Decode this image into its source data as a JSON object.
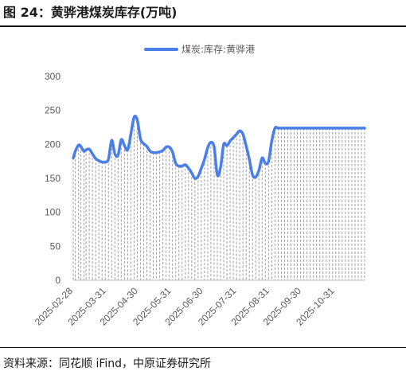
{
  "figure": {
    "title": "图 24：黄骅港煤炭库存(万吨)",
    "source": "资料来源：同花顺 iFind，中原证券研究所"
  },
  "colors": {
    "series": "#4a7ee8",
    "grid_drop": "#9e9e9e",
    "axis": "#bfbfbf",
    "text": "#595959"
  },
  "chart_data": {
    "type": "area",
    "series": [
      {
        "name": "煤炭:库存:黄骅港",
        "x": [
          "2025-02-28",
          "2025-03-02",
          "2025-03-05",
          "2025-03-07",
          "2025-03-10",
          "2025-03-12",
          "2025-03-15",
          "2025-03-18",
          "2025-03-21",
          "2025-03-24",
          "2025-03-27",
          "2025-03-30",
          "2025-04-02",
          "2025-04-05",
          "2025-04-08",
          "2025-04-11",
          "2025-04-14",
          "2025-04-17",
          "2025-04-20",
          "2025-04-23",
          "2025-04-26",
          "2025-04-29",
          "2025-05-02",
          "2025-05-05",
          "2025-05-08",
          "2025-05-11",
          "2025-05-14",
          "2025-05-17",
          "2025-05-20",
          "2025-05-23",
          "2025-05-26",
          "2025-05-29",
          "2025-06-01",
          "2025-06-04",
          "2025-06-07",
          "2025-06-10",
          "2025-06-13",
          "2025-06-16",
          "2025-06-19",
          "2025-06-22",
          "2025-06-25",
          "2025-06-28",
          "2025-07-01",
          "2025-07-04",
          "2025-07-07",
          "2025-07-10",
          "2025-07-13",
          "2025-07-16",
          "2025-07-19",
          "2025-07-22",
          "2025-07-25",
          "2025-07-28",
          "2025-07-31",
          "2025-08-03",
          "2025-08-06",
          "2025-08-09",
          "2025-08-12",
          "2025-08-15",
          "2025-08-18",
          "2025-08-21",
          "2025-08-24",
          "2025-08-27",
          "2025-08-30",
          "2025-09-02",
          "2025-09-05",
          "2025-09-08",
          "2025-09-11",
          "2025-09-14",
          "2025-09-17",
          "2025-09-20",
          "2025-09-23",
          "2025-09-26",
          "2025-09-29",
          "2025-10-02",
          "2025-10-05",
          "2025-10-08",
          "2025-10-11",
          "2025-10-14",
          "2025-10-17",
          "2025-10-20",
          "2025-10-23",
          "2025-10-26",
          "2025-10-29",
          "2025-11-01",
          "2025-11-04",
          "2025-11-07",
          "2025-11-10",
          "2025-11-13",
          "2025-11-16",
          "2025-11-19",
          "2025-11-22",
          "2025-11-25",
          "2025-11-28"
        ],
        "values": [
          180,
          190,
          199,
          197,
          190,
          192,
          193,
          186,
          179,
          176,
          174,
          174,
          178,
          206,
          186,
          184,
          207,
          198,
          192,
          215,
          240,
          236,
          208,
          201,
          197,
          190,
          188,
          188,
          189,
          191,
          196,
          196,
          189,
          172,
          168,
          168,
          170,
          165,
          158,
          150,
          153,
          165,
          178,
          195,
          203,
          196,
          155,
          166,
          200,
          198,
          205,
          210,
          215,
          220,
          215,
          198,
          178,
          155,
          152,
          162,
          180,
          172,
          175,
          205,
          224,
          224,
          224,
          224,
          224,
          224,
          224,
          224,
          224,
          224,
          224,
          224,
          224,
          224,
          224,
          224,
          224,
          224,
          224,
          224,
          224,
          224,
          224,
          224,
          224,
          224,
          224,
          224,
          224
        ]
      }
    ],
    "x_tick_labels": [
      "2025-02-28",
      "2025-03-31",
      "2025-04-30",
      "2025-05-31",
      "2025-06-30",
      "2025-07-31",
      "2025-08-31",
      "2025-09-30",
      "2025-10-31"
    ],
    "y_ticks": [
      0,
      50,
      100,
      150,
      200,
      250,
      300
    ],
    "ylim": [
      0,
      300
    ],
    "grid": false,
    "legend": "top-center"
  }
}
